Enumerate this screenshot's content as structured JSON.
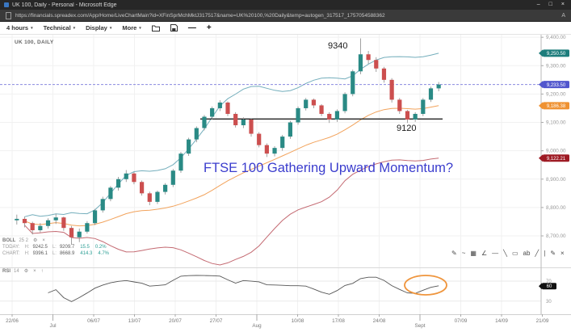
{
  "browser": {
    "title": "UK 100, Daily - Personal - Microsoft Edge",
    "url": "https://financials.spreadex.com/App/Home/LiveChartMain?id=XFinSprMchMktJ317517&name=UK%20100,%20Daily&temp=autogen_317517_1757054588362",
    "minimize_glyph": "–",
    "restore_glyph": "□",
    "close_glyph": "×",
    "read_aloud_glyph": "A"
  },
  "toolbar": {
    "menus": [
      {
        "label": "4 hours"
      },
      {
        "label": "Technical"
      },
      {
        "label": "Display"
      },
      {
        "label": "More"
      }
    ],
    "caret_glyph": "▾",
    "zoom_out_glyph": "—",
    "zoom_in_glyph": "+"
  },
  "chart": {
    "instrument_label": "UK 100, DAILY",
    "annotations": {
      "peak_label": "9340",
      "support_label": "9120",
      "headline": "FTSE 100 Gathering Upward Momentum?"
    },
    "price_tags": [
      {
        "name": "upper-band-price-tag",
        "label": "9,250.50",
        "color": "#1d7d7c",
        "anchor": "boll_upper"
      },
      {
        "name": "last-price-tag",
        "label": "9,233.50",
        "color": "#5156cd",
        "anchor": "price"
      },
      {
        "name": "middle-band-price-tag",
        "label": "9,186.38",
        "color": "#ef9232",
        "anchor": "boll_middle"
      },
      {
        "name": "lower-band-price-tag",
        "label": "9,122.21",
        "color": "#9e1b24",
        "anchor": "boll_lower"
      }
    ],
    "rsi_tag_label": "60",
    "boll": {
      "name": "BOLL",
      "params": "25 2",
      "high_key": "H:",
      "low_key": "L:",
      "rows": [
        {
          "label": "TODAY:",
          "high": "9242.5",
          "low": "9209.7",
          "range": "15.5",
          "pct": "0.2%"
        },
        {
          "label": "CHART:",
          "high": "9396.1",
          "low": "8668.9",
          "range": "414.3",
          "pct": "4.7%"
        }
      ]
    },
    "rsi_legend": {
      "name": "RSI",
      "period": "14"
    },
    "legend_icons": {
      "gear": "⚙",
      "remove": "×",
      "expand": "↑"
    },
    "draw_tools": [
      {
        "name": "draw-annotation",
        "glyph": "✎"
      },
      {
        "name": "draw-wave",
        "glyph": "~"
      },
      {
        "name": "draw-fibonacci",
        "glyph": "▦"
      },
      {
        "name": "draw-channel",
        "glyph": "∠"
      },
      {
        "name": "draw-horizontal-line",
        "glyph": "—"
      },
      {
        "name": "draw-trend-line",
        "glyph": "╲"
      },
      {
        "name": "draw-rectangle",
        "glyph": "▭"
      },
      {
        "name": "draw-text",
        "glyph": "ab"
      },
      {
        "name": "draw-ray",
        "glyph": "╱"
      },
      {
        "name": "divider",
        "glyph": "|"
      },
      {
        "name": "edit-pencil",
        "glyph": "✎"
      },
      {
        "name": "close-toolbar",
        "glyph": "×"
      }
    ]
  },
  "chart_data": {
    "type": "candlestick",
    "title": "UK 100, DAILY",
    "timeframe": "Daily",
    "y_axis": {
      "ticks": [
        9400,
        9300,
        9200,
        9100,
        9000,
        8900,
        8800,
        8700
      ],
      "range": [
        8589,
        9409
      ]
    },
    "x_ticks": [
      {
        "label": "22/06",
        "month": false
      },
      {
        "label": "Jul",
        "month": true
      },
      {
        "label": "06/07",
        "month": false
      },
      {
        "label": "13/07",
        "month": false
      },
      {
        "label": "20/07",
        "month": false
      },
      {
        "label": "27/07",
        "month": false
      },
      {
        "label": "Aug",
        "month": true
      },
      {
        "label": "10/08",
        "month": false
      },
      {
        "label": "17/08",
        "month": false
      },
      {
        "label": "24/08",
        "month": false
      },
      {
        "label": "Sept",
        "month": true
      },
      {
        "label": "07/09",
        "month": false
      },
      {
        "label": "14/09",
        "month": false
      },
      {
        "label": "21/09",
        "month": false
      }
    ],
    "candles": [
      [
        8755,
        8775,
        8740,
        8760
      ],
      [
        8760,
        8768,
        8730,
        8745
      ],
      [
        8745,
        8750,
        8705,
        8720
      ],
      [
        8720,
        8745,
        8712,
        8735
      ],
      [
        8735,
        8762,
        8726,
        8755
      ],
      [
        8755,
        8778,
        8742,
        8765
      ],
      [
        8765,
        8768,
        8718,
        8728
      ],
      [
        8728,
        8735,
        8668.9,
        8695
      ],
      [
        8695,
        8726,
        8678,
        8715
      ],
      [
        8715,
        8752,
        8708,
        8745
      ],
      [
        8745,
        8795,
        8738,
        8790
      ],
      [
        8790,
        8838,
        8782,
        8830
      ],
      [
        8830,
        8876,
        8822,
        8870
      ],
      [
        8870,
        8908,
        8860,
        8900
      ],
      [
        8900,
        8932,
        8890,
        8920
      ],
      [
        8920,
        8925,
        8882,
        8890
      ],
      [
        8890,
        8895,
        8842,
        8850
      ],
      [
        8850,
        8856,
        8808,
        8820
      ],
      [
        8820,
        8860,
        8812,
        8855
      ],
      [
        8855,
        8886,
        8846,
        8880
      ],
      [
        8880,
        8936,
        8872,
        8930
      ],
      [
        8930,
        8996,
        8922,
        8990
      ],
      [
        8990,
        9046,
        8982,
        9040
      ],
      [
        9040,
        9086,
        9030,
        9080
      ],
      [
        9080,
        9126,
        9072,
        9120
      ],
      [
        9120,
        9156,
        9110,
        9150
      ],
      [
        9150,
        9178,
        9140,
        9170
      ],
      [
        9170,
        9174,
        9122,
        9130
      ],
      [
        9130,
        9136,
        9082,
        9090
      ],
      [
        9090,
        9118,
        9080,
        9110
      ],
      [
        9110,
        9114,
        9050,
        9060
      ],
      [
        9060,
        9066,
        9012,
        9020
      ],
      [
        9020,
        9026,
        8978,
        8990
      ],
      [
        8990,
        9016,
        8980,
        9010
      ],
      [
        9010,
        9056,
        9000,
        9050
      ],
      [
        9050,
        9106,
        9042,
        9100
      ],
      [
        9100,
        9156,
        9092,
        9150
      ],
      [
        9150,
        9186,
        9142,
        9180
      ],
      [
        9180,
        9184,
        9150,
        9160
      ],
      [
        9160,
        9164,
        9122,
        9130
      ],
      [
        9130,
        9136,
        9098,
        9110
      ],
      [
        9110,
        9146,
        9102,
        9140
      ],
      [
        9140,
        9206,
        9132,
        9200
      ],
      [
        9200,
        9286,
        9192,
        9280
      ],
      [
        9280,
        9396.1,
        9270,
        9340
      ],
      [
        9340,
        9352,
        9306,
        9320
      ],
      [
        9320,
        9330,
        9278,
        9290
      ],
      [
        9290,
        9296,
        9240,
        9250
      ],
      [
        9250,
        9256,
        9170,
        9180
      ],
      [
        9180,
        9186,
        9130,
        9140
      ],
      [
        9140,
        9144,
        9098,
        9110
      ],
      [
        9110,
        9136,
        9102,
        9130
      ],
      [
        9130,
        9186,
        9122,
        9180
      ],
      [
        9180,
        9226,
        9172,
        9220
      ],
      [
        9220,
        9242.5,
        9209.7,
        9233.5
      ]
    ],
    "bollinger": {
      "period": 25,
      "stddev": 2
    },
    "last_price": 9233.5,
    "support_line": {
      "price": 9112,
      "from_index": 24,
      "to_index": 55
    },
    "rsi": {
      "period": 14,
      "levels": [
        70,
        30
      ],
      "last_value": 60
    },
    "colors": {
      "up": "#2a8a85",
      "down": "#cc4f4f",
      "wick": "#8a8a8a",
      "boll_upper": "#74aebc",
      "boll_middle": "#f2a35c",
      "boll_lower": "#c46a72",
      "last_price_line": "#8a8adf",
      "support": "#222222",
      "rsi_line": "#555555",
      "ellipse": "#ef953d",
      "headline": "#3a3ccd"
    }
  }
}
